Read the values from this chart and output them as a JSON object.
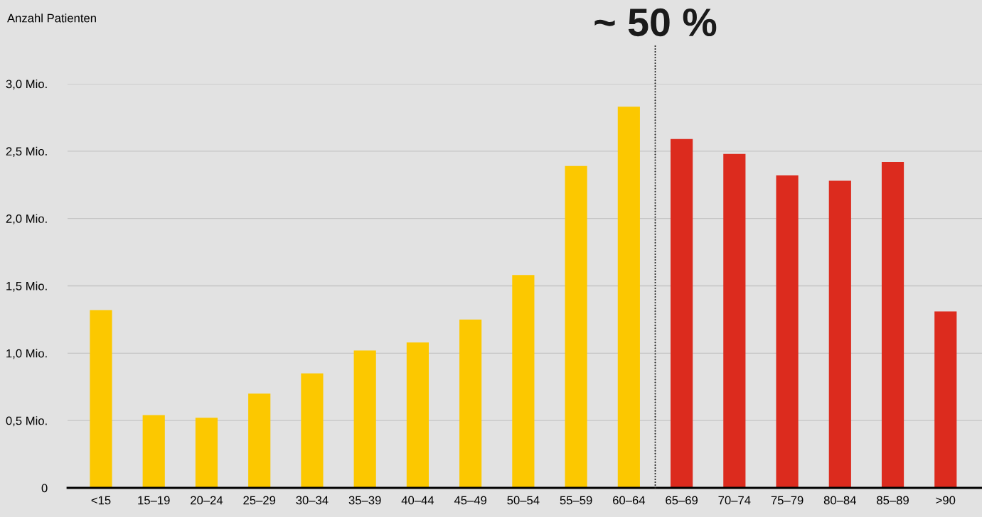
{
  "chart_data": {
    "type": "bar",
    "ylabel": "Anzahl Patienten",
    "categories": [
      "<15",
      "15–19",
      "20–24",
      "25–29",
      "30–34",
      "35–39",
      "40–44",
      "45–49",
      "50–54",
      "55–59",
      "60–64",
      "65–69",
      "70–74",
      "75–79",
      "80–84",
      "85–89",
      ">90"
    ],
    "values": [
      1.32,
      0.54,
      0.52,
      0.7,
      0.85,
      1.02,
      1.08,
      1.25,
      1.58,
      2.39,
      2.83,
      2.59,
      2.48,
      2.32,
      2.28,
      2.42,
      1.31
    ],
    "colors": [
      "#fcc800",
      "#fcc800",
      "#fcc800",
      "#fcc800",
      "#fcc800",
      "#fcc800",
      "#fcc800",
      "#fcc800",
      "#fcc800",
      "#fcc800",
      "#fcc800",
      "#dc2b1e",
      "#dc2b1e",
      "#dc2b1e",
      "#dc2b1e",
      "#dc2b1e",
      "#dc2b1e"
    ],
    "ylim": [
      0,
      3.0
    ],
    "yticks": [
      0,
      {
        "value": 0.5,
        "label": "0,5 Mio."
      },
      {
        "value": 1.0,
        "label": "1,0 Mio."
      },
      {
        "value": 1.5,
        "label": "1,5 Mio."
      },
      {
        "value": 2.0,
        "label": "2,0 Mio."
      },
      {
        "value": 2.5,
        "label": "2,5 Mio."
      },
      {
        "value": 3.0,
        "label": "3,0 Mio."
      }
    ],
    "grid": "y",
    "annotations": [
      "~ 50 %"
    ]
  }
}
